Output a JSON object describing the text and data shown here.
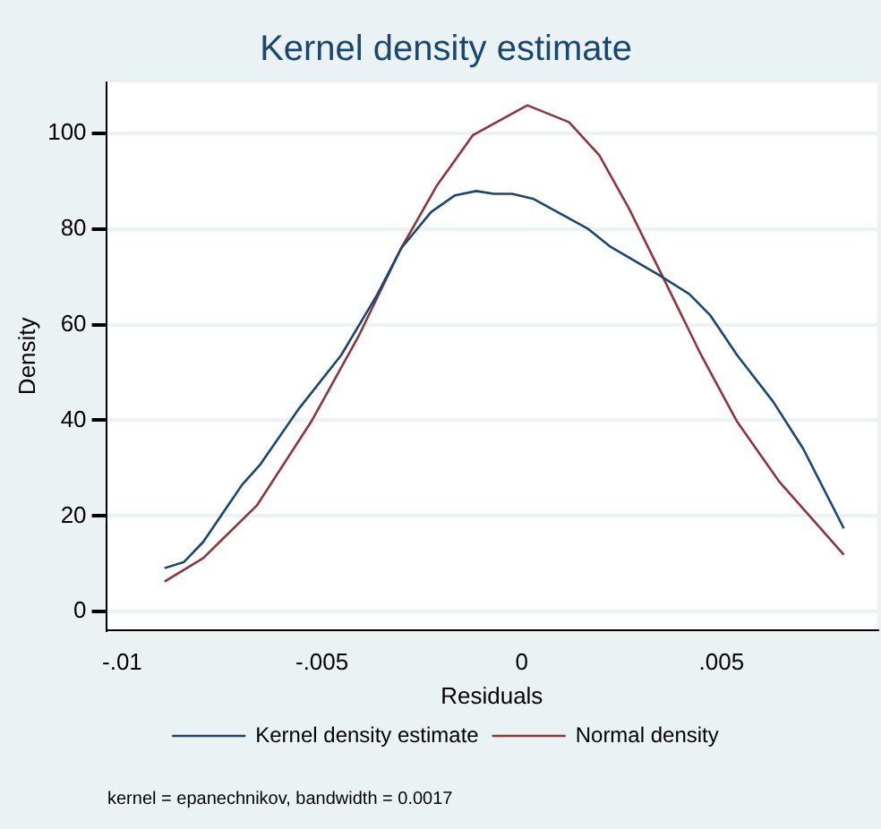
{
  "chart_data": {
    "type": "line",
    "title": "Kernel density estimate",
    "xlabel": "Residuals",
    "ylabel": "Density",
    "xlim": [
      -0.0104,
      0.0089
    ],
    "ylim": [
      -3.8,
      110.6
    ],
    "xticks": [
      {
        "value": -0.01,
        "label": "-.01"
      },
      {
        "value": -0.005,
        "label": "-.005"
      },
      0,
      {
        "value": 0.005,
        "label": ".005"
      }
    ],
    "yticks": [
      0,
      20,
      40,
      60,
      80,
      100
    ],
    "grid": "y",
    "legend": "bottom",
    "marker": "none",
    "line_style": "solid",
    "annotations": [
      "kernel = epanechnikov, bandwidth = 0.0017"
    ],
    "series": [
      {
        "name": "Kernel density estimate",
        "color": "#1a476f",
        "x": [
          -0.00894,
          -0.00845,
          -0.00797,
          -0.007,
          -0.00655,
          -0.00557,
          -0.00452,
          -0.00362,
          -0.00302,
          -0.00227,
          -0.00167,
          -0.00114,
          -0.0007,
          -0.00024,
          0.00028,
          0.00118,
          0.00164,
          0.00223,
          0.00344,
          0.00419,
          0.00471,
          0.00539,
          0.00629,
          0.00704,
          0.00806
        ],
        "values": [
          9.1,
          10.4,
          14.6,
          26.5,
          30.7,
          42.5,
          53.6,
          66.2,
          75.9,
          83.5,
          87.0,
          87.9,
          87.3,
          87.3,
          86.3,
          82.2,
          80.1,
          76.2,
          70.3,
          66.4,
          62.0,
          53.6,
          43.9,
          34.1,
          17.4
        ]
      },
      {
        "name": "Normal density",
        "color": "#90353b",
        "x": [
          -0.00894,
          -0.00797,
          -0.00662,
          -0.00527,
          -0.00407,
          -0.00302,
          -0.00212,
          -0.00122,
          0.00014,
          0.00118,
          0.00194,
          0.00268,
          0.00359,
          0.00449,
          0.00539,
          0.00644,
          0.00806
        ],
        "values": [
          6.3,
          11.2,
          22.3,
          39.7,
          57.8,
          75.9,
          89.1,
          99.6,
          105.8,
          102.3,
          95.4,
          84.3,
          68.9,
          53.6,
          39.7,
          27.2,
          11.9
        ]
      }
    ]
  }
}
